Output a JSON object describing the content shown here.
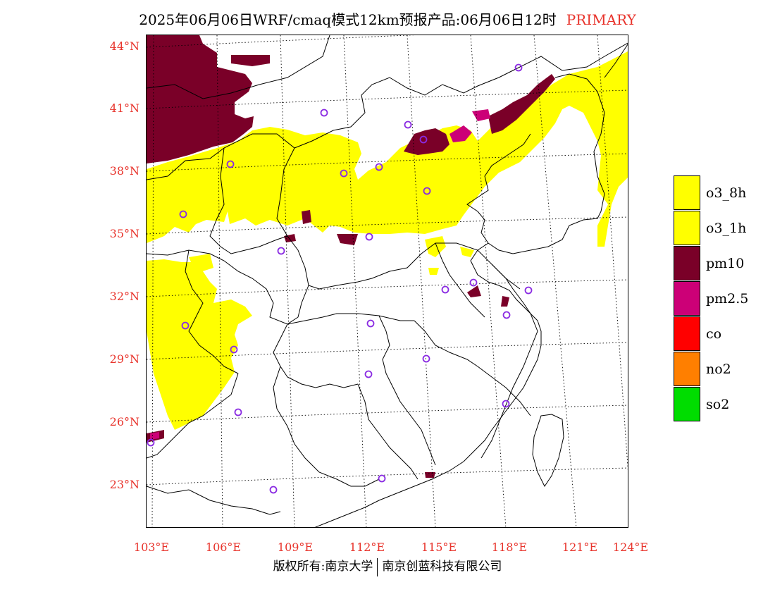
{
  "header": {
    "title": "2025年06月06日WRF/cmaq模式12km预报产品:06月06日12时",
    "tag": "PRIMARY"
  },
  "axes": {
    "lat_labels": [
      "44°N",
      "41°N",
      "38°N",
      "35°N",
      "32°N",
      "29°N",
      "26°N",
      "23°N"
    ],
    "lon_labels": [
      "103°E",
      "106°E",
      "109°E",
      "112°E",
      "115°E",
      "118°E",
      "121°E",
      "124°E"
    ]
  },
  "legend": {
    "items": [
      {
        "label": "o3_8h",
        "color": "#ffff00"
      },
      {
        "label": "o3_1h",
        "color": "#ffff00"
      },
      {
        "label": "pm10",
        "color": "#7a0028"
      },
      {
        "label": "pm2.5",
        "color": "#cc0077"
      },
      {
        "label": "co",
        "color": "#ff0000"
      },
      {
        "label": "no2",
        "color": "#ff7f00"
      },
      {
        "label": "so2",
        "color": "#00dd00"
      }
    ]
  },
  "footer": {
    "left": "版权所有:南京大学",
    "right": "南京创蓝科技有限公司"
  },
  "colors": {
    "ozone": "#ffff00",
    "pm10": "#7a0028",
    "pm25": "#cc0077",
    "city_marker": "#8a2be2",
    "axis_label": "#e8342c"
  }
}
